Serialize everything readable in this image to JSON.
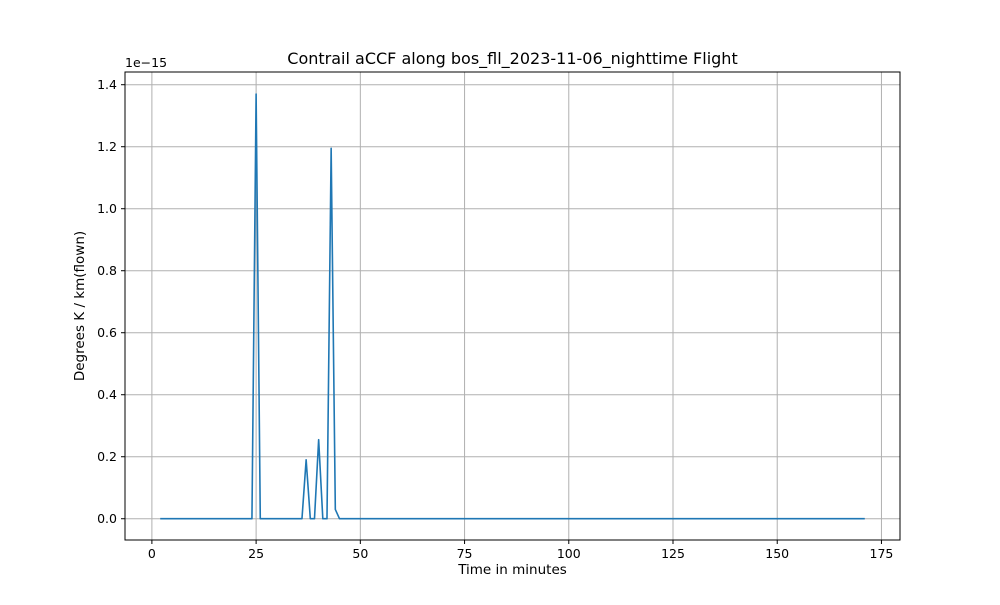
{
  "chart_data": {
    "type": "line",
    "title": "Contrail aCCF along bos_fll_2023-11-06_nighttime Flight",
    "xlabel": "Time in minutes",
    "ylabel": "Degrees K / km(flown)",
    "y_offset_label": "1e−15",
    "y_scale_factor": 1e-15,
    "xlim": [
      -6.45,
      179.45
    ],
    "ylim": [
      -0.0686,
      1.441
    ],
    "grid": true,
    "x_ticks": [
      0,
      25,
      50,
      75,
      100,
      125,
      150,
      175
    ],
    "x_tick_labels": [
      "0",
      "25",
      "50",
      "75",
      "100",
      "125",
      "150",
      "175"
    ],
    "y_ticks": [
      0.0,
      0.2,
      0.4,
      0.6,
      0.8,
      1.0,
      1.2,
      1.4
    ],
    "y_tick_labels": [
      "0.0",
      "0.2",
      "0.4",
      "0.6",
      "0.8",
      "1.0",
      "1.2",
      "1.4"
    ],
    "series": [
      {
        "color": "#1f77b4",
        "x": [
          2,
          24,
          25,
          26,
          36,
          37,
          38,
          39,
          40,
          41,
          42,
          43,
          44,
          45,
          171
        ],
        "y": [
          0.0,
          0.0,
          1.37,
          0.0,
          0.0,
          0.19,
          0.0,
          0.0,
          0.255,
          0.0,
          0.0,
          1.195,
          0.03,
          0.0,
          0.0
        ]
      }
    ]
  }
}
